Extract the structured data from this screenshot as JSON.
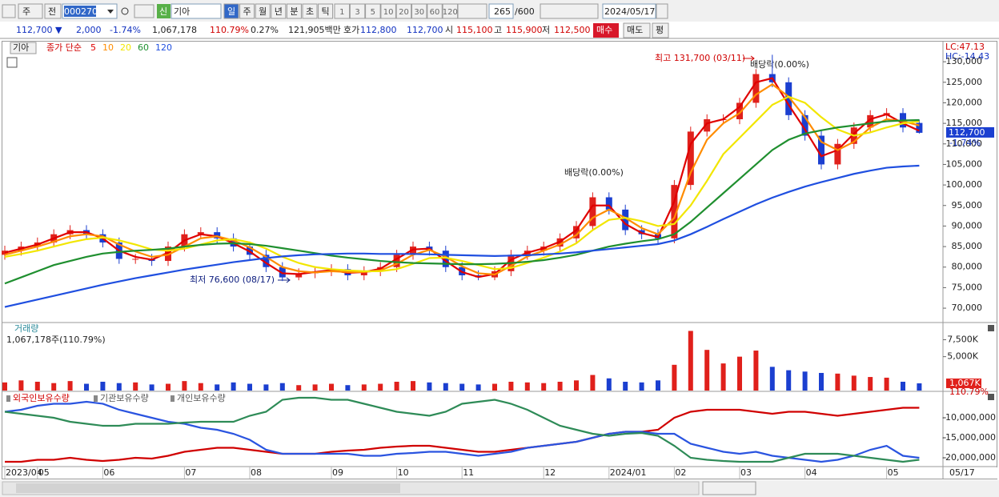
{
  "toolbar": {
    "market": "주",
    "scope": "전",
    "code": "000270",
    "credit": "신",
    "name": "기아",
    "periods": [
      "일",
      "주",
      "월",
      "년",
      "분",
      "초",
      "틱"
    ],
    "intervals": [
      "1",
      "3",
      "5",
      "10",
      "20",
      "30",
      "60",
      "120"
    ],
    "count": "265",
    "max_count": "/600",
    "date": "2024/05/17"
  },
  "quote": {
    "price": "112,700 ▼",
    "change": "2,000",
    "rate": "-1.74%",
    "volume": "1,067,178",
    "volume_ratio": "110.79%",
    "turnover": "0.27%",
    "amount": "121,905백만",
    "quote_label": "호가",
    "ask": "112,800",
    "bid": "112,700",
    "open_label": "시",
    "open": "115,100",
    "high_label": "고",
    "high": "115,900",
    "low_label": "저",
    "low": "112,500",
    "buy": "매수",
    "sell": "매도",
    "avg": "평"
  },
  "chart_data": [
    {
      "type": "candlestick",
      "symbol": "기아",
      "legend_title": "종가 단순",
      "categories": [
        "2023/04",
        null,
        "05",
        null,
        null,
        null,
        "06",
        null,
        null,
        null,
        null,
        "07",
        null,
        null,
        null,
        "08",
        null,
        null,
        null,
        null,
        "09",
        null,
        null,
        null,
        "10",
        null,
        null,
        null,
        "11",
        null,
        null,
        null,
        null,
        "12",
        null,
        null,
        null,
        "2024/01",
        null,
        null,
        null,
        "02",
        null,
        null,
        null,
        "03",
        null,
        null,
        null,
        "04",
        null,
        null,
        null,
        null,
        "05",
        null,
        null
      ],
      "open": [
        83000,
        84000,
        85000,
        86000,
        88000,
        89000,
        88000,
        86000,
        82000,
        82000,
        81500,
        85000,
        88000,
        88500,
        87000,
        85000,
        83000,
        80000,
        77500,
        78500,
        79000,
        79500,
        78000,
        79000,
        80000,
        83000,
        85000,
        84000,
        80000,
        78000,
        77500,
        79000,
        83000,
        84000,
        85000,
        87000,
        90000,
        97000,
        94000,
        89000,
        88000,
        87000,
        100000,
        113000,
        116000,
        116000,
        120000,
        127000,
        125000,
        117000,
        112000,
        105000,
        110000,
        114000,
        117000,
        117500,
        115100
      ],
      "high": [
        85200,
        86200,
        87200,
        89200,
        90200,
        90200,
        89200,
        87200,
        83200,
        83200,
        86200,
        89200,
        89700,
        89700,
        88200,
        86200,
        84200,
        81200,
        79700,
        80200,
        80700,
        80700,
        80200,
        81200,
        84200,
        86200,
        86200,
        85200,
        81200,
        79200,
        80200,
        84200,
        85200,
        86200,
        88200,
        91200,
        98200,
        98200,
        95200,
        90200,
        89200,
        101200,
        114200,
        117200,
        117200,
        121200,
        128200,
        131700,
        126200,
        118200,
        113200,
        111200,
        115200,
        118200,
        118700,
        118700,
        115900
      ],
      "low": [
        81800,
        82800,
        83800,
        84800,
        86800,
        86800,
        84800,
        80800,
        80800,
        80300,
        80300,
        83800,
        86800,
        85800,
        83800,
        81800,
        78800,
        76600,
        76800,
        77300,
        77800,
        76800,
        76800,
        77800,
        78800,
        81800,
        82800,
        78800,
        76800,
        76800,
        76800,
        77800,
        81800,
        82800,
        83800,
        85800,
        88800,
        92800,
        87800,
        86800,
        85800,
        85800,
        98800,
        111800,
        114800,
        114800,
        118800,
        123800,
        115800,
        110800,
        103800,
        103800,
        108800,
        112800,
        115800,
        112800,
        112500
      ],
      "close": [
        84000,
        85000,
        86000,
        88000,
        89000,
        88000,
        86000,
        82000,
        82000,
        81500,
        85000,
        88000,
        88500,
        87000,
        85000,
        83000,
        80000,
        77500,
        78500,
        79000,
        79500,
        78000,
        79000,
        80000,
        83000,
        85000,
        84000,
        80000,
        78000,
        77500,
        79000,
        83000,
        84000,
        85000,
        87000,
        90000,
        97000,
        94000,
        89000,
        88000,
        87000,
        100000,
        113000,
        116000,
        116000,
        120000,
        127000,
        125000,
        117000,
        112000,
        105000,
        110000,
        114000,
        117000,
        117500,
        114000,
        112700
      ],
      "up_color": "#e0201b",
      "down_color": "#1b3fd0",
      "series": [
        {
          "name": "5",
          "color": "#e00000",
          "values": [
            83500,
            84500,
            85500,
            87000,
            88500,
            88500,
            87000,
            84000,
            82500,
            81800,
            83500,
            86500,
            88000,
            87500,
            85800,
            83800,
            81000,
            78500,
            78300,
            78800,
            79300,
            78600,
            78800,
            79600,
            82000,
            84300,
            84500,
            81500,
            78800,
            77600,
            78300,
            81800,
            83500,
            84600,
            86200,
            89000,
            95000,
            95000,
            90500,
            88300,
            87300,
            96000,
            110000,
            115000,
            116000,
            119000,
            125000,
            126000,
            119500,
            113500,
            107000,
            108500,
            112500,
            116000,
            117200,
            115000,
            113200
          ]
        },
        {
          "name": "10",
          "color": "#ff8c00",
          "values": [
            83000,
            84000,
            85000,
            86200,
            87500,
            88000,
            87500,
            85500,
            83800,
            82500,
            83000,
            85000,
            87000,
            87500,
            86500,
            84800,
            82500,
            80000,
            79000,
            78700,
            79000,
            78800,
            78800,
            79200,
            80800,
            83000,
            84200,
            82500,
            80200,
            78500,
            78200,
            80300,
            82600,
            84000,
            85500,
            87800,
            92000,
            94000,
            92000,
            89500,
            88000,
            92000,
            103000,
            111000,
            115000,
            117500,
            122000,
            124500,
            121500,
            116500,
            110500,
            108500,
            110500,
            114000,
            116000,
            115500,
            114500
          ]
        },
        {
          "name": "20",
          "color": "#f2e600",
          "values": [
            82500,
            83200,
            84000,
            85000,
            86000,
            86800,
            87200,
            86500,
            85500,
            84300,
            84000,
            84500,
            85500,
            86500,
            86800,
            86000,
            84500,
            82500,
            81000,
            80000,
            79500,
            79200,
            79000,
            79000,
            79500,
            80800,
            82200,
            82300,
            81500,
            80500,
            79500,
            79800,
            81000,
            82300,
            83800,
            85800,
            89000,
            91500,
            92000,
            91200,
            90000,
            90500,
            95000,
            101000,
            107500,
            111500,
            115500,
            119500,
            121500,
            120000,
            116500,
            113500,
            112000,
            112800,
            114000,
            115000,
            115500
          ]
        },
        {
          "name": "60",
          "color": "#1f8f2f",
          "values": [
            76000,
            77500,
            79000,
            80500,
            81500,
            82500,
            83300,
            83700,
            84000,
            84200,
            84500,
            85000,
            85400,
            85700,
            85800,
            85600,
            85200,
            84600,
            84000,
            83400,
            82800,
            82300,
            81900,
            81500,
            81200,
            81000,
            80900,
            80800,
            80700,
            80700,
            80800,
            81000,
            81300,
            81700,
            82300,
            83000,
            84000,
            85000,
            85700,
            86300,
            86800,
            88000,
            91000,
            94500,
            98000,
            101500,
            105000,
            108500,
            111000,
            112500,
            113300,
            114000,
            114500,
            115000,
            115500,
            115700,
            115800
          ]
        },
        {
          "name": "120",
          "color": "#1f4fe0",
          "values": [
            70300,
            71200,
            72100,
            73000,
            73900,
            74800,
            75700,
            76500,
            77300,
            78000,
            78700,
            79400,
            80000,
            80600,
            81200,
            81700,
            82200,
            82600,
            82900,
            83100,
            83200,
            83300,
            83300,
            83200,
            83200,
            83200,
            83100,
            83000,
            82900,
            82800,
            82700,
            82800,
            82900,
            83100,
            83300,
            83600,
            84000,
            84400,
            84800,
            85200,
            85600,
            86500,
            88000,
            89800,
            91700,
            93500,
            95300,
            96900,
            98300,
            99600,
            100700,
            101700,
            102700,
            103500,
            104200,
            104500,
            104700
          ]
        }
      ],
      "ylim": [
        66700,
        134900
      ],
      "yticks": [
        {
          "value": 70000,
          "label": "70,000"
        },
        {
          "value": 75000,
          "label": "75,000"
        },
        {
          "value": 80000,
          "label": "80,000"
        },
        {
          "value": 85000,
          "label": "85,000"
        },
        {
          "value": 90000,
          "label": "90,000"
        },
        {
          "value": 95000,
          "label": "95,000"
        },
        {
          "value": 100000,
          "label": "100,000"
        },
        {
          "value": 105000,
          "label": "105,000"
        },
        {
          "value": 110000,
          "label": "110,000"
        },
        {
          "value": 115000,
          "label": "115,000"
        },
        {
          "value": 120000,
          "label": "120,000"
        },
        {
          "value": 125000,
          "label": "125,000"
        },
        {
          "value": 130000,
          "label": "130,000"
        }
      ],
      "high_note": "최고 131,700 (03/11)",
      "low_note": "최저 76,600 (08/17)",
      "dividend_notes": [
        "배당락(0.00%)",
        "배당락(0.00%)"
      ],
      "lc_label": "LC:47.13",
      "hc_label": "HC:-14.43",
      "last_label": "112,700",
      "change_label": "-1.74%",
      "end_date_label": "05/17"
    },
    {
      "type": "bar",
      "title": "거래량",
      "subtitle": "1,067,178주(110.79%)",
      "values": [
        1200,
        1500,
        1300,
        1100,
        1400,
        1000,
        1300,
        1100,
        1200,
        900,
        1000,
        1400,
        1100,
        900,
        1200,
        1000,
        900,
        1100,
        800,
        900,
        1000,
        800,
        900,
        1000,
        1300,
        1400,
        1200,
        1100,
        1000,
        900,
        1000,
        1300,
        1200,
        1100,
        1300,
        1500,
        2300,
        1800,
        1300,
        1200,
        1500,
        3800,
        8800,
        6000,
        4000,
        5000,
        5900,
        3500,
        3000,
        2800,
        2600,
        2500,
        2200,
        2000,
        1900,
        1300,
        1067
      ],
      "ylim": [
        0,
        9800
      ],
      "yticks": [
        {
          "value": 5000,
          "label": "5,000K"
        },
        {
          "value": 7500,
          "label": "7,500K"
        }
      ],
      "last_label": "1,067K",
      "ratio_label": "110.79%"
    },
    {
      "type": "line",
      "series": [
        {
          "name": "외국인보유수량",
          "color": "#d00000",
          "values": [
            -21000000,
            -21000000,
            -20500000,
            -20500000,
            -20000000,
            -20500000,
            -20800000,
            -20500000,
            -20000000,
            -20200000,
            -19500000,
            -18500000,
            -18000000,
            -17500000,
            -17500000,
            -18000000,
            -18500000,
            -19000000,
            -19000000,
            -19000000,
            -18500000,
            -18200000,
            -18000000,
            -17500000,
            -17200000,
            -17000000,
            -17000000,
            -17500000,
            -18000000,
            -18500000,
            -18500000,
            -18000000,
            -17500000,
            -17000000,
            -16500000,
            -16000000,
            -15000000,
            -14000000,
            -13500000,
            -13500000,
            -13000000,
            -10000000,
            -8500000,
            -8000000,
            -8000000,
            -8000000,
            -8500000,
            -9000000,
            -8500000,
            -8500000,
            -9000000,
            -9500000,
            -9000000,
            -8500000,
            -8000000,
            -7500000,
            -7500000
          ]
        },
        {
          "name": "기관보유수량",
          "color": "#2a54e0",
          "values": [
            -8500000,
            -8000000,
            -7000000,
            -6500000,
            -6500000,
            -6000000,
            -6500000,
            -8000000,
            -9000000,
            -10000000,
            -11000000,
            -11500000,
            -12500000,
            -13000000,
            -14000000,
            -15500000,
            -18000000,
            -19000000,
            -19000000,
            -19000000,
            -19000000,
            -19000000,
            -19500000,
            -19500000,
            -19000000,
            -18800000,
            -18500000,
            -18500000,
            -19000000,
            -19500000,
            -19000000,
            -18500000,
            -17500000,
            -17000000,
            -16500000,
            -16000000,
            -15000000,
            -14000000,
            -13500000,
            -13500000,
            -14000000,
            -14000000,
            -16500000,
            -17500000,
            -18500000,
            -19000000,
            -18500000,
            -19500000,
            -20000000,
            -20500000,
            -21000000,
            -20500000,
            -19500000,
            -18000000,
            -17000000,
            -19500000,
            -20000000
          ]
        },
        {
          "name": "개인보유수량",
          "color": "#2e8b57",
          "values": [
            -8500000,
            -9000000,
            -9500000,
            -10000000,
            -11000000,
            -11500000,
            -12000000,
            -12000000,
            -11500000,
            -11500000,
            -11500000,
            -11200000,
            -11000000,
            -11000000,
            -11000000,
            -9500000,
            -8500000,
            -5500000,
            -5000000,
            -5000000,
            -5500000,
            -5500000,
            -6500000,
            -7500000,
            -8500000,
            -9000000,
            -9500000,
            -8500000,
            -6500000,
            -6000000,
            -5500000,
            -6500000,
            -8000000,
            -10000000,
            -12000000,
            -13000000,
            -14000000,
            -14500000,
            -14000000,
            -13800000,
            -14500000,
            -17000000,
            -20000000,
            -20500000,
            -20800000,
            -21000000,
            -21000000,
            -21000000,
            -20000000,
            -19000000,
            -19000000,
            -19000000,
            -19500000,
            -20000000,
            -20500000,
            -21000000,
            -20500000
          ]
        }
      ],
      "ylim": [
        -22000000,
        -3600000
      ],
      "yticks": [
        {
          "value": -10000000,
          "label": "-10,000,000"
        },
        {
          "value": -15000000,
          "label": "-15,000,000"
        },
        {
          "value": -20000000,
          "label": "-20,000,000"
        }
      ]
    }
  ]
}
